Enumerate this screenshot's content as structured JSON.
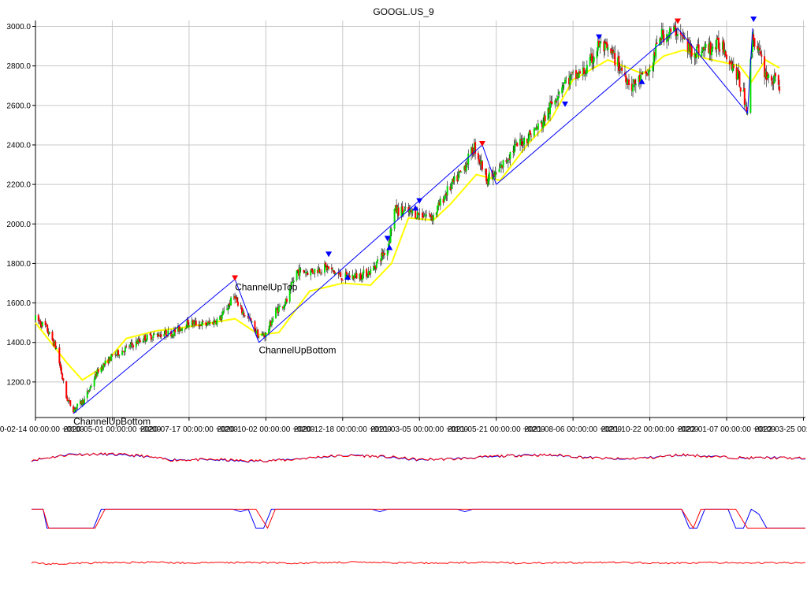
{
  "chart_data": {
    "type": "candlestick",
    "title": "GOOGL.US_9",
    "ylim": [
      1020,
      3030
    ],
    "yticks": [
      {
        "value": 1200,
        "label": "1200.0"
      },
      {
        "value": 1400,
        "label": "1400.0"
      },
      {
        "value": 1600,
        "label": "1600.0"
      },
      {
        "value": 1800,
        "label": "1800.0"
      },
      {
        "value": 2000,
        "label": "2000.0"
      },
      {
        "value": 2200,
        "label": "2200.0"
      },
      {
        "value": 2400,
        "label": "2400.0"
      },
      {
        "value": 2600,
        "label": "2600.0"
      },
      {
        "value": 2800,
        "label": "2800.0"
      },
      {
        "value": 3000,
        "label": "3000.0"
      }
    ],
    "xlim": [
      "2020-02-14",
      "2022-03-27"
    ],
    "xticks": [
      {
        "date": "2020-02-14",
        "label": "2020-02-14 00:00:00 +0100"
      },
      {
        "date": "2020-05-01",
        "label": "2020-05-01 00:00:00 +0200"
      },
      {
        "date": "2020-07-17",
        "label": "2020-07-17 00:00:00 +0200"
      },
      {
        "date": "2020-10-02",
        "label": "2020-10-02 00:00:00 +0200"
      },
      {
        "date": "2020-12-18",
        "label": "2020-12-18 00:00:00 +0100"
      },
      {
        "date": "2021-03-05",
        "label": "2021-03-05 00:00:00 +0100"
      },
      {
        "date": "2021-05-21",
        "label": "2021-05-21 00:00:00 +0200"
      },
      {
        "date": "2021-08-06",
        "label": "2021-08-06 00:00:00 +0200"
      },
      {
        "date": "2021-10-22",
        "label": "2021-10-22 00:00:00 +0200"
      },
      {
        "date": "2022-01-07",
        "label": "2022-01-07 00:00:00 +0100"
      },
      {
        "date": "2022-03-25",
        "label": "2022-03-25 00:00:00 +0100"
      }
    ],
    "grid": true,
    "price_path": [
      [
        "2020-02-14",
        1520
      ],
      [
        "2020-02-24",
        1480
      ],
      [
        "2020-03-06",
        1370
      ],
      [
        "2020-03-16",
        1120
      ],
      [
        "2020-03-23",
        1060
      ],
      [
        "2020-04-03",
        1110
      ],
      [
        "2020-04-17",
        1260
      ],
      [
        "2020-05-01",
        1330
      ],
      [
        "2020-05-15",
        1370
      ],
      [
        "2020-06-01",
        1420
      ],
      [
        "2020-06-15",
        1440
      ],
      [
        "2020-07-01",
        1450
      ],
      [
        "2020-07-17",
        1500
      ],
      [
        "2020-08-03",
        1490
      ],
      [
        "2020-08-17",
        1520
      ],
      [
        "2020-09-01",
        1640
      ],
      [
        "2020-09-04",
        1580
      ],
      [
        "2020-09-15",
        1520
      ],
      [
        "2020-09-25",
        1430
      ],
      [
        "2020-10-02",
        1440
      ],
      [
        "2020-10-12",
        1560
      ],
      [
        "2020-10-23",
        1610
      ],
      [
        "2020-11-02",
        1760
      ],
      [
        "2020-11-16",
        1760
      ],
      [
        "2020-12-01",
        1780
      ],
      [
        "2020-12-18",
        1730
      ],
      [
        "2021-01-05",
        1740
      ],
      [
        "2021-01-15",
        1760
      ],
      [
        "2021-02-01",
        1880
      ],
      [
        "2021-02-08",
        2070
      ],
      [
        "2021-02-22",
        2060
      ],
      [
        "2021-03-05",
        2050
      ],
      [
        "2021-03-19",
        2040
      ],
      [
        "2021-04-01",
        2160
      ],
      [
        "2021-04-16",
        2260
      ],
      [
        "2021-04-29",
        2390
      ],
      [
        "2021-05-12",
        2230
      ],
      [
        "2021-05-21",
        2250
      ],
      [
        "2021-06-07",
        2380
      ],
      [
        "2021-06-21",
        2440
      ],
      [
        "2021-07-06",
        2510
      ],
      [
        "2021-07-27",
        2720
      ],
      [
        "2021-08-06",
        2740
      ],
      [
        "2021-08-20",
        2780
      ],
      [
        "2021-09-01",
        2910
      ],
      [
        "2021-09-15",
        2850
      ],
      [
        "2021-10-04",
        2700
      ],
      [
        "2021-10-22",
        2770
      ],
      [
        "2021-11-01",
        2950
      ],
      [
        "2021-11-19",
        2980
      ],
      [
        "2021-12-01",
        2880
      ],
      [
        "2021-12-14",
        2880
      ],
      [
        "2022-01-03",
        2910
      ],
      [
        "2022-01-18",
        2750
      ],
      [
        "2022-01-28",
        2580
      ],
      [
        "2022-02-02",
        2960
      ],
      [
        "2022-02-15",
        2760
      ],
      [
        "2022-03-01",
        2700
      ]
    ],
    "moving_average": [
      [
        "2020-02-14",
        1500
      ],
      [
        "2020-03-16",
        1300
      ],
      [
        "2020-04-01",
        1210
      ],
      [
        "2020-04-20",
        1270
      ],
      [
        "2020-05-15",
        1420
      ],
      [
        "2020-06-15",
        1460
      ],
      [
        "2020-07-17",
        1480
      ],
      [
        "2020-09-01",
        1520
      ],
      [
        "2020-09-25",
        1440
      ],
      [
        "2020-10-15",
        1450
      ],
      [
        "2020-11-15",
        1660
      ],
      [
        "2020-12-18",
        1700
      ],
      [
        "2021-01-15",
        1690
      ],
      [
        "2021-02-05",
        1800
      ],
      [
        "2021-02-22",
        2030
      ],
      [
        "2021-03-19",
        2020
      ],
      [
        "2021-04-05",
        2100
      ],
      [
        "2021-05-01",
        2250
      ],
      [
        "2021-05-25",
        2220
      ],
      [
        "2021-06-21",
        2400
      ],
      [
        "2021-07-15",
        2530
      ],
      [
        "2021-08-06",
        2730
      ],
      [
        "2021-09-10",
        2830
      ],
      [
        "2021-10-15",
        2760
      ],
      [
        "2021-11-05",
        2850
      ],
      [
        "2021-11-25",
        2880
      ],
      [
        "2021-12-15",
        2840
      ],
      [
        "2022-01-20",
        2800
      ],
      [
        "2022-02-01",
        2720
      ],
      [
        "2022-02-15",
        2830
      ],
      [
        "2022-03-01",
        2790
      ]
    ],
    "pattern_lines": [
      [
        [
          "2020-03-23",
          1040
        ],
        [
          "2020-09-01",
          1720
        ]
      ],
      [
        [
          "2020-09-01",
          1720
        ],
        [
          "2020-09-25",
          1400
        ]
      ],
      [
        [
          "2020-09-25",
          1400
        ],
        [
          "2021-05-07",
          2400
        ]
      ],
      [
        [
          "2021-05-07",
          2400
        ],
        [
          "2021-05-21",
          2200
        ]
      ],
      [
        [
          "2021-05-21",
          2200
        ],
        [
          "2021-11-19",
          2990
        ]
      ],
      [
        [
          "2021-11-19",
          2990
        ],
        [
          "2022-01-28",
          2560
        ]
      ],
      [
        [
          "2022-01-28",
          2560
        ],
        [
          "2022-02-02",
          2990
        ]
      ]
    ],
    "markers_down": [
      {
        "date": "2020-09-01",
        "value": 1720,
        "color": "#ff0000"
      },
      {
        "date": "2020-12-04",
        "value": 1840,
        "color": "#0000ff"
      },
      {
        "date": "2021-02-01",
        "value": 1920,
        "color": "#0000ff"
      },
      {
        "date": "2021-03-05",
        "value": 2110,
        "color": "#0000ff"
      },
      {
        "date": "2021-05-07",
        "value": 2400,
        "color": "#ff0000"
      },
      {
        "date": "2021-07-29",
        "value": 2600,
        "color": "#0000ff"
      },
      {
        "date": "2021-09-01",
        "value": 2940,
        "color": "#0000ff"
      },
      {
        "date": "2021-11-19",
        "value": 3020,
        "color": "#ff0000"
      },
      {
        "date": "2022-02-03",
        "value": 3030,
        "color": "#0000ff"
      }
    ],
    "markers_up": [
      {
        "date": "2020-12-23",
        "value": 1730,
        "color": "#0000ff"
      },
      {
        "date": "2021-02-03",
        "value": 1880,
        "color": "#0000ff"
      },
      {
        "date": "2021-03-01",
        "value": 2080,
        "color": "#0000ff"
      },
      {
        "date": "2021-10-14",
        "value": 2720,
        "color": "#0000ff"
      }
    ],
    "annotations": [
      {
        "text": "ChannelUpBottom",
        "date": "2020-03-23",
        "value": 1040
      },
      {
        "text": "ChannelUpTop",
        "date": "2020-09-01",
        "value": 1720
      },
      {
        "text": "ChannelUpBottom",
        "date": "2020-09-25",
        "value": 1400
      }
    ],
    "colors": {
      "candle_up": "#00dd00",
      "candle_down": "#ff0000",
      "wick": "#000000",
      "moving_average": "#ffff00",
      "pattern": "#0000ff",
      "grid": "#c8c8c8",
      "indicator_blue": "#0000ff",
      "indicator_red": "#ff0000"
    },
    "indicators": [
      {
        "name": "",
        "ylim": [
          0,
          100
        ],
        "blue": [
          [
            0,
            58
          ],
          [
            5,
            82
          ],
          [
            10,
            80
          ],
          [
            14,
            74
          ],
          [
            18,
            62
          ],
          [
            24,
            60
          ],
          [
            28,
            55
          ],
          [
            33,
            62
          ],
          [
            38,
            72
          ],
          [
            42,
            78
          ],
          [
            46,
            70
          ],
          [
            50,
            60
          ],
          [
            55,
            66
          ],
          [
            60,
            72
          ],
          [
            64,
            80
          ],
          [
            68,
            76
          ],
          [
            72,
            70
          ],
          [
            76,
            62
          ],
          [
            80,
            70
          ],
          [
            84,
            78
          ],
          [
            88,
            74
          ],
          [
            92,
            66
          ],
          [
            96,
            70
          ],
          [
            100,
            64
          ]
        ],
        "red": [
          [
            0,
            60
          ],
          [
            5,
            80
          ],
          [
            10,
            82
          ],
          [
            14,
            76
          ],
          [
            18,
            60
          ],
          [
            24,
            62
          ],
          [
            28,
            57
          ],
          [
            33,
            60
          ],
          [
            38,
            74
          ],
          [
            42,
            76
          ],
          [
            46,
            72
          ],
          [
            50,
            62
          ],
          [
            55,
            64
          ],
          [
            60,
            74
          ],
          [
            64,
            78
          ],
          [
            68,
            78
          ],
          [
            72,
            68
          ],
          [
            76,
            64
          ],
          [
            80,
            68
          ],
          [
            84,
            80
          ],
          [
            88,
            72
          ],
          [
            92,
            68
          ],
          [
            96,
            68
          ],
          [
            100,
            66
          ]
        ]
      },
      {
        "name": "",
        "ylim": [
          0,
          100
        ],
        "blue": [
          [
            0,
            80
          ],
          [
            1.5,
            80
          ],
          [
            2,
            5
          ],
          [
            8,
            5
          ],
          [
            9,
            80
          ],
          [
            26,
            80
          ],
          [
            27,
            70
          ],
          [
            28,
            80
          ],
          [
            29,
            5
          ],
          [
            30,
            5
          ],
          [
            31,
            80
          ],
          [
            44,
            80
          ],
          [
            45,
            70
          ],
          [
            46,
            80
          ],
          [
            55,
            80
          ],
          [
            56,
            70
          ],
          [
            57,
            80
          ],
          [
            84,
            80
          ],
          [
            85,
            5
          ],
          [
            86,
            5
          ],
          [
            87,
            80
          ],
          [
            90,
            80
          ],
          [
            91,
            5
          ],
          [
            92,
            5
          ],
          [
            93,
            80
          ],
          [
            94,
            60
          ],
          [
            95,
            5
          ],
          [
            100,
            5
          ]
        ],
        "red": [
          [
            0,
            80
          ],
          [
            1.5,
            80
          ],
          [
            2.2,
            5
          ],
          [
            8.2,
            5
          ],
          [
            9.5,
            80
          ],
          [
            29,
            80
          ],
          [
            30.5,
            5
          ],
          [
            31.5,
            80
          ],
          [
            84,
            80
          ],
          [
            85.5,
            5
          ],
          [
            86.5,
            80
          ],
          [
            91,
            80
          ],
          [
            92.5,
            5
          ],
          [
            100,
            5
          ]
        ]
      },
      {
        "name": "",
        "ylim": [
          0,
          100
        ],
        "red": [
          [
            0,
            60
          ],
          [
            2,
            50
          ],
          [
            6,
            55
          ],
          [
            10,
            58
          ],
          [
            16,
            60
          ],
          [
            20,
            56
          ],
          [
            28,
            60
          ],
          [
            34,
            55
          ],
          [
            40,
            60
          ],
          [
            46,
            58
          ],
          [
            52,
            56
          ],
          [
            58,
            60
          ],
          [
            64,
            55
          ],
          [
            70,
            58
          ],
          [
            76,
            60
          ],
          [
            82,
            55
          ],
          [
            88,
            58
          ],
          [
            94,
            56
          ],
          [
            100,
            58
          ]
        ]
      }
    ]
  }
}
